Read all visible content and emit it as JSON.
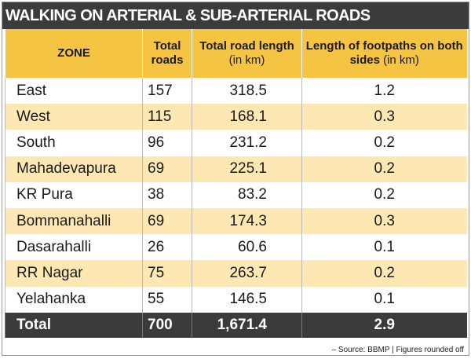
{
  "header": {
    "title": "WALKING ON ARTERIAL & SUB-ARTERIAL ROADS"
  },
  "table": {
    "columns": [
      {
        "text": "ZONE"
      },
      {
        "text": "Total roads"
      },
      {
        "text": "Total road length",
        "unit": "(in km)"
      },
      {
        "text": "Length of footpaths on both sides",
        "unit": "(in km)"
      }
    ],
    "rows": [
      [
        "East",
        "157",
        "318.5",
        "1.2"
      ],
      [
        "West",
        "115",
        "168.1",
        "0.3"
      ],
      [
        "South",
        "96",
        "231.2",
        "0.2"
      ],
      [
        "Mahadevapura",
        "69",
        "225.1",
        "0.2"
      ],
      [
        "KR Pura",
        "38",
        "83.2",
        "0.2"
      ],
      [
        "Bommanahalli",
        "69",
        "174.3",
        "0.3"
      ],
      [
        "Dasarahalli",
        "26",
        "60.6",
        "0.1"
      ],
      [
        "RR Nagar",
        "75",
        "263.7",
        "0.2"
      ],
      [
        "Yelahanka",
        "55",
        "146.5",
        "0.1"
      ]
    ],
    "total": [
      "Total",
      "700",
      "1,671.4",
      "2.9"
    ]
  },
  "footer": {
    "source": "– Source: BBMP | Figures rounded off"
  }
}
